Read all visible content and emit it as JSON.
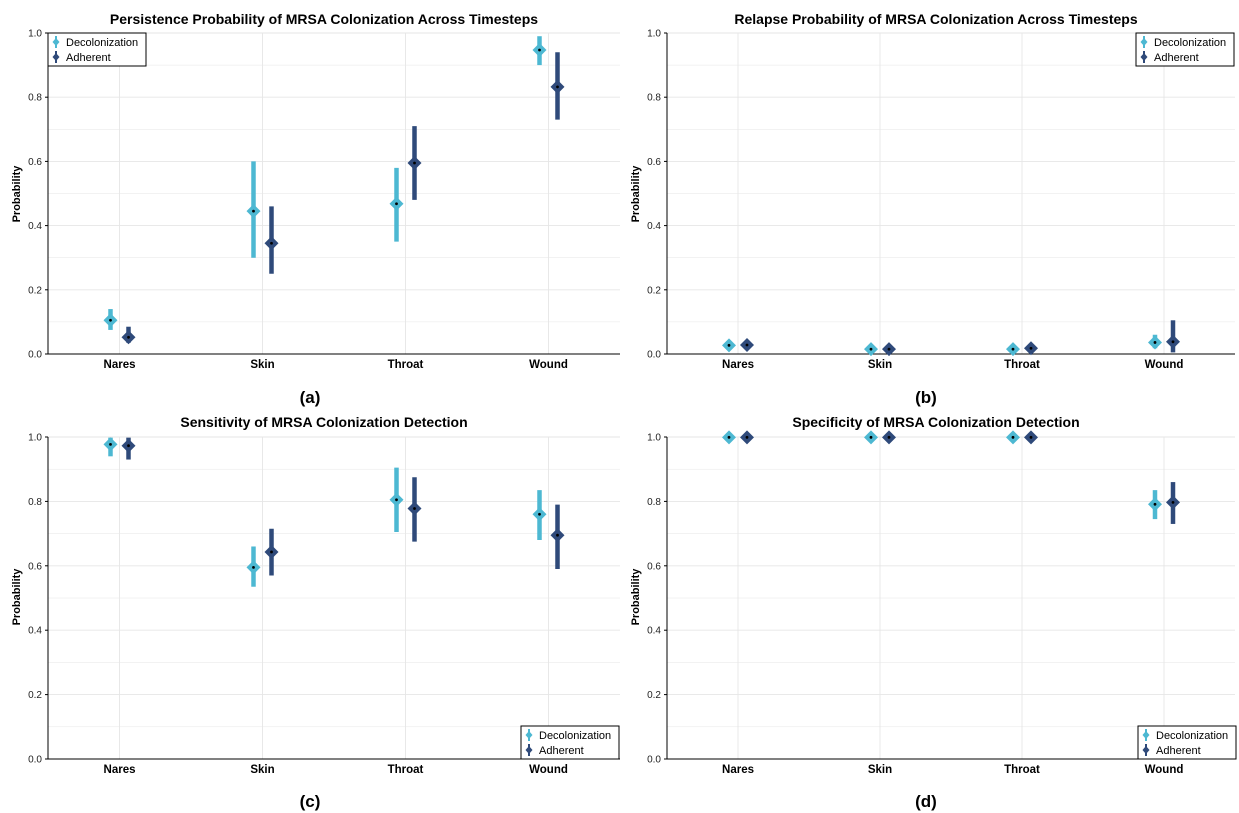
{
  "figure": {
    "colors": {
      "decolonization": "#4db8d2",
      "adherent": "#2f4a7a",
      "marker_dot": "#000000",
      "grid": "#e6e6e6",
      "axis": "#000000"
    },
    "legend": {
      "decolonization_label": "Decolonization",
      "adherent_label": "Adherent"
    },
    "ylabel": "Probability",
    "panels": [
      {
        "caption": "(a)"
      },
      {
        "caption": "(b)"
      },
      {
        "caption": "(c)"
      },
      {
        "caption": "(d)"
      }
    ]
  },
  "chart_data": [
    {
      "type": "scatter",
      "title": "Persistence Probability of MRSA Colonization Across Timesteps",
      "xlabel": "",
      "ylabel": "Probability",
      "ylim": [
        0,
        1
      ],
      "yticks": [
        "0.0",
        "0.2",
        "0.4",
        "0.6",
        "0.8",
        "1.0"
      ],
      "categories": [
        "Nares",
        "Skin",
        "Throat",
        "Wound"
      ],
      "legend_position": "top-left",
      "grid": true,
      "series": [
        {
          "name": "Decolonization",
          "values": [
            0.105,
            0.445,
            0.468,
            0.947
          ],
          "lower": [
            0.075,
            0.3,
            0.35,
            0.9
          ],
          "upper": [
            0.14,
            0.6,
            0.58,
            0.99
          ]
        },
        {
          "name": "Adherent",
          "values": [
            0.052,
            0.345,
            0.595,
            0.832
          ],
          "lower": [
            0.035,
            0.25,
            0.48,
            0.73
          ],
          "upper": [
            0.085,
            0.46,
            0.71,
            0.94
          ]
        }
      ]
    },
    {
      "type": "scatter",
      "title": "Relapse Probability of MRSA Colonization Across Timesteps",
      "xlabel": "",
      "ylabel": "Probability",
      "ylim": [
        0,
        1
      ],
      "yticks": [
        "0.0",
        "0.2",
        "0.4",
        "0.6",
        "0.8",
        "1.0"
      ],
      "categories": [
        "Nares",
        "Skin",
        "Throat",
        "Wound"
      ],
      "legend_position": "top-right",
      "grid": true,
      "series": [
        {
          "name": "Decolonization",
          "values": [
            0.027,
            0.015,
            0.015,
            0.036
          ],
          "lower": [
            0.015,
            0.008,
            0.008,
            0.018
          ],
          "upper": [
            0.04,
            0.025,
            0.025,
            0.06
          ]
        },
        {
          "name": "Adherent",
          "values": [
            0.028,
            0.015,
            0.018,
            0.038
          ],
          "lower": [
            0.016,
            0.008,
            0.008,
            0.005
          ],
          "upper": [
            0.042,
            0.025,
            0.03,
            0.105
          ]
        }
      ]
    },
    {
      "type": "scatter",
      "title": "Sensitivity of MRSA Colonization Detection",
      "xlabel": "",
      "ylabel": "Probability",
      "ylim": [
        0,
        1
      ],
      "yticks": [
        "0.0",
        "0.2",
        "0.4",
        "0.6",
        "0.8",
        "1.0"
      ],
      "categories": [
        "Nares",
        "Skin",
        "Throat",
        "Wound"
      ],
      "legend_position": "bottom-right",
      "grid": true,
      "series": [
        {
          "name": "Decolonization",
          "values": [
            0.977,
            0.595,
            0.805,
            0.76
          ],
          "lower": [
            0.94,
            0.535,
            0.705,
            0.68
          ],
          "upper": [
            0.998,
            0.66,
            0.905,
            0.835
          ]
        },
        {
          "name": "Adherent",
          "values": [
            0.973,
            0.643,
            0.778,
            0.695
          ],
          "lower": [
            0.93,
            0.57,
            0.675,
            0.59
          ],
          "upper": [
            0.998,
            0.715,
            0.875,
            0.79
          ]
        }
      ]
    },
    {
      "type": "scatter",
      "title": "Specificity of MRSA Colonization Detection",
      "xlabel": "",
      "ylabel": "Probability",
      "ylim": [
        0,
        1
      ],
      "yticks": [
        "0.0",
        "0.2",
        "0.4",
        "0.6",
        "0.8",
        "1.0"
      ],
      "categories": [
        "Nares",
        "Skin",
        "Throat",
        "Wound"
      ],
      "legend_position": "bottom-right",
      "grid": true,
      "series": [
        {
          "name": "Decolonization",
          "values": [
            0.999,
            0.999,
            0.999,
            0.791
          ],
          "lower": [
            0.995,
            0.995,
            0.995,
            0.745
          ],
          "upper": [
            1.0,
            1.0,
            1.0,
            0.835
          ]
        },
        {
          "name": "Adherent",
          "values": [
            0.999,
            0.999,
            0.999,
            0.797
          ],
          "lower": [
            0.995,
            0.995,
            0.995,
            0.73
          ],
          "upper": [
            1.0,
            1.0,
            1.0,
            0.86
          ]
        }
      ]
    }
  ]
}
